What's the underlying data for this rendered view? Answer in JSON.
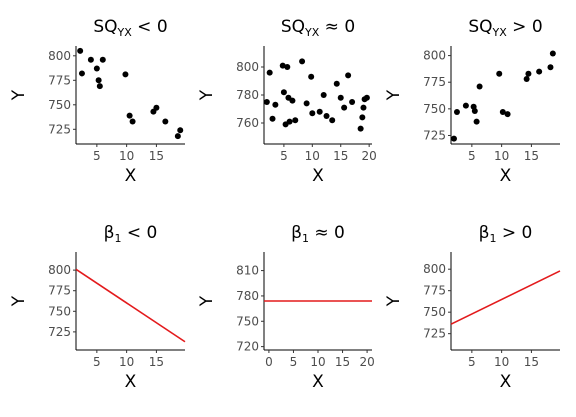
{
  "colors": {
    "point": "#000000",
    "line": "#e31a1c",
    "tick_text": "#4d4d4d"
  },
  "chart_data": [
    {
      "type": "scatter",
      "title": {
        "prefix": "SQ",
        "sub": "YX",
        "suffix": " < 0"
      },
      "xlabel": "X",
      "ylabel": "Y",
      "xlim": [
        1.5,
        19.8
      ],
      "ylim": [
        710,
        810
      ],
      "xticks": [
        5,
        10,
        15
      ],
      "yticks": [
        725,
        750,
        775,
        800
      ],
      "grid": false,
      "points": [
        [
          2.2,
          805
        ],
        [
          2.5,
          782
        ],
        [
          4,
          796
        ],
        [
          5,
          787
        ],
        [
          5.3,
          775
        ],
        [
          5.5,
          769
        ],
        [
          6,
          796
        ],
        [
          9.8,
          781
        ],
        [
          10.5,
          739
        ],
        [
          11,
          733
        ],
        [
          14.5,
          743
        ],
        [
          15,
          747
        ],
        [
          16.5,
          733
        ],
        [
          18.6,
          718
        ],
        [
          19,
          724
        ]
      ]
    },
    {
      "type": "scatter",
      "title": {
        "prefix": "SQ",
        "sub": "YX",
        "suffix": " ≈ 0"
      },
      "xlabel": "X",
      "ylabel": "Y",
      "xlim": [
        1.5,
        20.5
      ],
      "ylim": [
        745,
        815
      ],
      "xticks": [
        5,
        10,
        15,
        20
      ],
      "yticks": [
        760,
        780,
        800
      ],
      "grid": false,
      "points": [
        [
          2,
          775
        ],
        [
          2.5,
          796
        ],
        [
          3,
          763
        ],
        [
          3.5,
          773
        ],
        [
          4.8,
          801
        ],
        [
          5,
          782
        ],
        [
          5.3,
          759
        ],
        [
          5.6,
          800
        ],
        [
          5.8,
          778
        ],
        [
          6,
          761
        ],
        [
          6.5,
          776
        ],
        [
          7,
          762
        ],
        [
          8.2,
          804
        ],
        [
          9,
          774
        ],
        [
          9.8,
          793
        ],
        [
          10,
          767
        ],
        [
          11.3,
          768
        ],
        [
          12,
          780
        ],
        [
          12.5,
          765
        ],
        [
          13.5,
          762
        ],
        [
          14.3,
          788
        ],
        [
          15,
          778
        ],
        [
          15.6,
          771
        ],
        [
          16.3,
          794
        ],
        [
          17,
          775
        ],
        [
          18.5,
          756
        ],
        [
          18.8,
          764
        ],
        [
          19,
          771
        ],
        [
          19.2,
          777
        ],
        [
          19.6,
          778
        ]
      ]
    },
    {
      "type": "scatter",
      "title": {
        "prefix": "SQ",
        "sub": "YX",
        "suffix": " > 0"
      },
      "xlabel": "X",
      "ylabel": "Y",
      "xlim": [
        1.5,
        19.8
      ],
      "ylim": [
        717,
        809
      ],
      "xticks": [
        5,
        10,
        15
      ],
      "yticks": [
        725,
        750,
        775,
        800
      ],
      "grid": false,
      "points": [
        [
          2,
          722
        ],
        [
          2.5,
          747
        ],
        [
          4,
          753
        ],
        [
          5.3,
          752
        ],
        [
          5.5,
          748
        ],
        [
          5.8,
          738
        ],
        [
          6.3,
          771
        ],
        [
          9.6,
          783
        ],
        [
          10.2,
          747
        ],
        [
          11,
          745
        ],
        [
          14.2,
          778
        ],
        [
          14.5,
          783
        ],
        [
          16.3,
          785
        ],
        [
          18.2,
          789
        ],
        [
          18.6,
          802
        ]
      ]
    },
    {
      "type": "line",
      "title": {
        "prefix": "β",
        "sub": "1",
        "suffix": " < 0"
      },
      "xlabel": "X",
      "ylabel": "Y",
      "xlim": [
        1.5,
        19.8
      ],
      "ylim": [
        703,
        822
      ],
      "xticks": [
        5,
        10,
        15
      ],
      "yticks": [
        725,
        750,
        775,
        800
      ],
      "grid": false,
      "line": {
        "x": [
          1.5,
          19.8
        ],
        "y": [
          801,
          713
        ]
      }
    },
    {
      "type": "line",
      "title": {
        "prefix": "β",
        "sub": "1",
        "suffix": " ≈ 0"
      },
      "xlabel": "X",
      "ylabel": "Y",
      "xlim": [
        -1,
        21
      ],
      "ylim": [
        716,
        832
      ],
      "xticks": [
        0,
        5,
        10,
        15,
        20
      ],
      "yticks": [
        720,
        750,
        780,
        810
      ],
      "grid": false,
      "line": {
        "x": [
          -1,
          21
        ],
        "y": [
          774,
          774
        ]
      }
    },
    {
      "type": "line",
      "title": {
        "prefix": "β",
        "sub": "1",
        "suffix": " > 0"
      },
      "xlabel": "X",
      "ylabel": "Y",
      "xlim": [
        1.5,
        19.8
      ],
      "ylim": [
        706,
        820
      ],
      "xticks": [
        5,
        10,
        15
      ],
      "yticks": [
        725,
        750,
        775,
        800
      ],
      "grid": false,
      "line": {
        "x": [
          1.5,
          19.8
        ],
        "y": [
          736,
          798
        ]
      }
    }
  ]
}
